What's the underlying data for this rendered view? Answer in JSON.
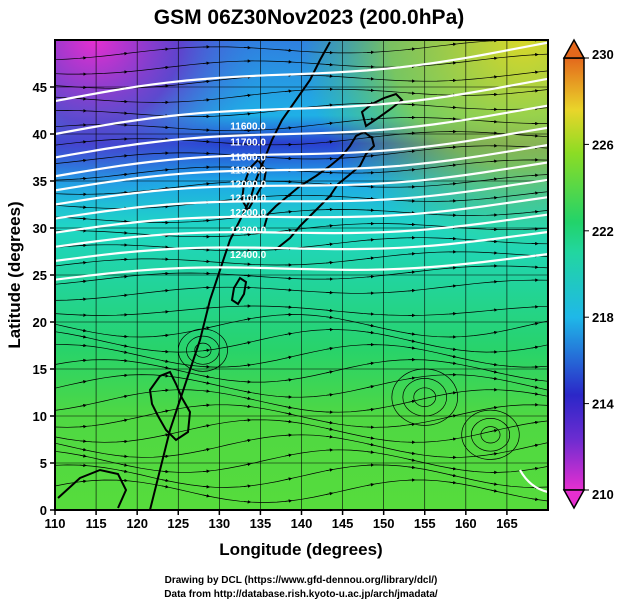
{
  "title": "GSM 06Z30Nov2023 (200.0hPa)",
  "x_axis": {
    "label": "Longitude (degrees)",
    "range": [
      110,
      170
    ],
    "ticks": [
      "110",
      "115",
      "120",
      "125",
      "130",
      "135",
      "140",
      "145",
      "150",
      "155",
      "160",
      "165"
    ]
  },
  "y_axis": {
    "label": "Latitude  (degrees)",
    "range": [
      0,
      50
    ],
    "ticks": [
      "0",
      "5",
      "10",
      "15",
      "20",
      "25",
      "30",
      "35",
      "40",
      "45"
    ]
  },
  "colorbar": {
    "range": [
      210,
      230
    ],
    "ticks": [
      "210",
      "214",
      "218",
      "222",
      "226",
      "230"
    ],
    "colors": [
      "#e62fd0",
      "#2b27c8",
      "#1fb8e8",
      "#22d36a",
      "#8cdc24",
      "#e9d52a",
      "#e4681c"
    ]
  },
  "contour_labels": [
    "11600.0",
    "11700.0",
    "11800.0",
    "11900.0",
    "12000.0",
    "12100.0",
    "12200.0",
    "12300.0",
    "12400.0"
  ],
  "credits": {
    "line1": "Drawing by DCL (https://www.gfd-dennou.org/library/dcl/)",
    "line2": "Data from http://database.rish.kyoto-u.ac.jp/arch/jmadata/"
  }
}
